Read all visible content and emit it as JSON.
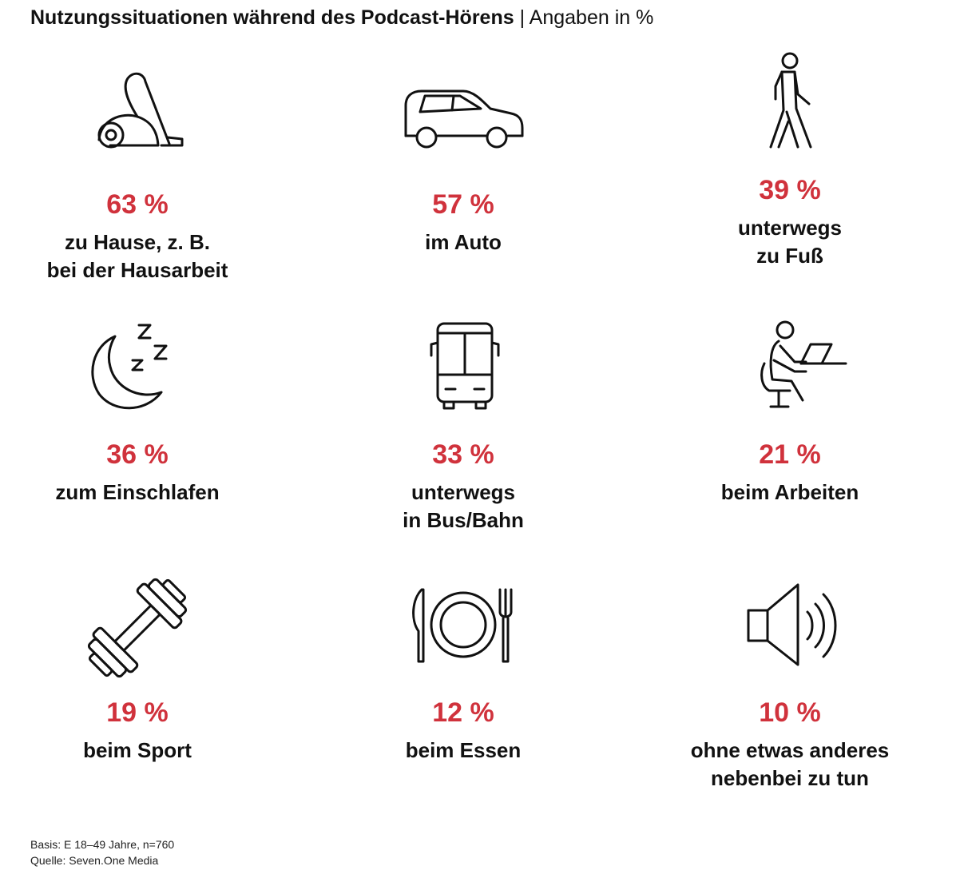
{
  "title": {
    "bold": "Nutzungssituationen während des Podcast-Hörens",
    "separator": "|",
    "subtitle": "Angaben in %"
  },
  "chart_data": {
    "type": "table",
    "title": "Nutzungssituationen während des Podcast-Hörens",
    "unit": "Angaben in %",
    "items": [
      {
        "label_lines": [
          "zu Hause, z. B.",
          "bei der Hausarbeit"
        ],
        "value": 63,
        "value_text": "63 %",
        "icon": "vacuum-cleaner-icon"
      },
      {
        "label_lines": [
          "im Auto"
        ],
        "value": 57,
        "value_text": "57 %",
        "icon": "car-icon"
      },
      {
        "label_lines": [
          "unterwegs",
          "zu Fuß"
        ],
        "value": 39,
        "value_text": "39 %",
        "icon": "walking-person-icon"
      },
      {
        "label_lines": [
          "zum Einschlafen"
        ],
        "value": 36,
        "value_text": "36 %",
        "icon": "moon-sleep-icon"
      },
      {
        "label_lines": [
          "unterwegs",
          "in Bus/Bahn"
        ],
        "value": 33,
        "value_text": "33 %",
        "icon": "bus-icon"
      },
      {
        "label_lines": [
          "beim Arbeiten"
        ],
        "value": 21,
        "value_text": "21 %",
        "icon": "person-at-desk-icon"
      },
      {
        "label_lines": [
          "beim Sport"
        ],
        "value": 19,
        "value_text": "19 %",
        "icon": "dumbbell-icon"
      },
      {
        "label_lines": [
          "beim Essen"
        ],
        "value": 12,
        "value_text": "12 %",
        "icon": "plate-cutlery-icon"
      },
      {
        "label_lines": [
          "ohne etwas anderes",
          "nebenbei zu tun"
        ],
        "value": 10,
        "value_text": "10 %",
        "icon": "speaker-icon"
      }
    ]
  },
  "colors": {
    "accent": "#d0323c",
    "text": "#111111"
  },
  "footer": {
    "basis": "Basis: E 18–49 Jahre, n=760",
    "source": "Quelle: Seven.One Media"
  }
}
